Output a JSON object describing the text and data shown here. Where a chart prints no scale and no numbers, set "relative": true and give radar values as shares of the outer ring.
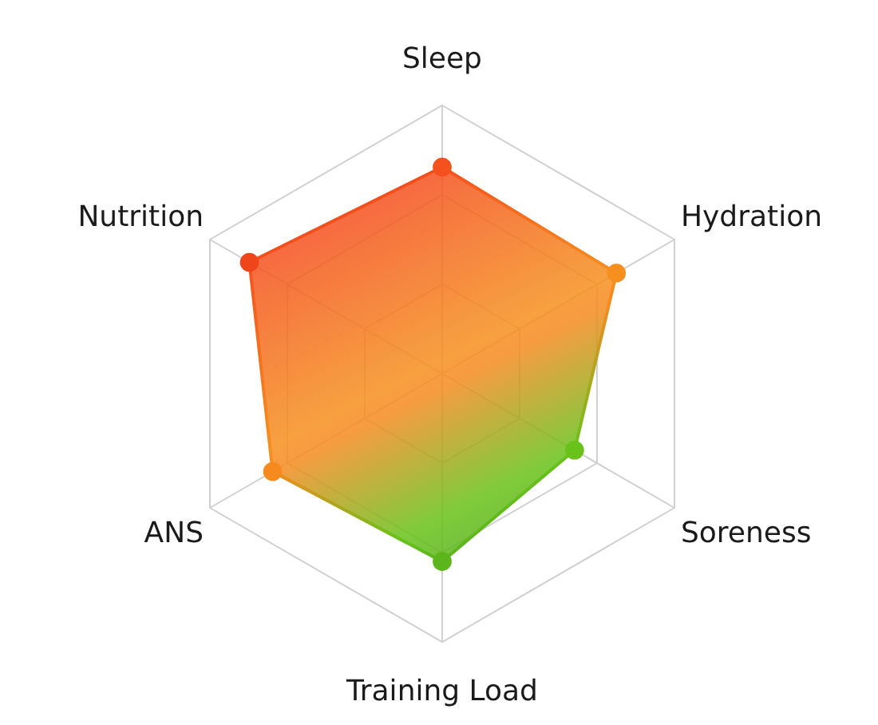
{
  "chart_data": {
    "type": "radar",
    "relative": true,
    "categories": [
      "Sleep",
      "Hydration",
      "Soreness",
      "Training Load",
      "ANS",
      "Nutrition"
    ],
    "marker": "circle",
    "series": [
      {
        "color": "#f4511e",
        "colors": [
          "#f4511e",
          "#f5901e",
          "#68c21a",
          "#5cb51a",
          "#f68a1f",
          "#f0441a"
        ],
        "values": [
          0.77,
          0.75,
          0.57,
          0.7,
          0.73,
          0.83
        ]
      }
    ]
  }
}
